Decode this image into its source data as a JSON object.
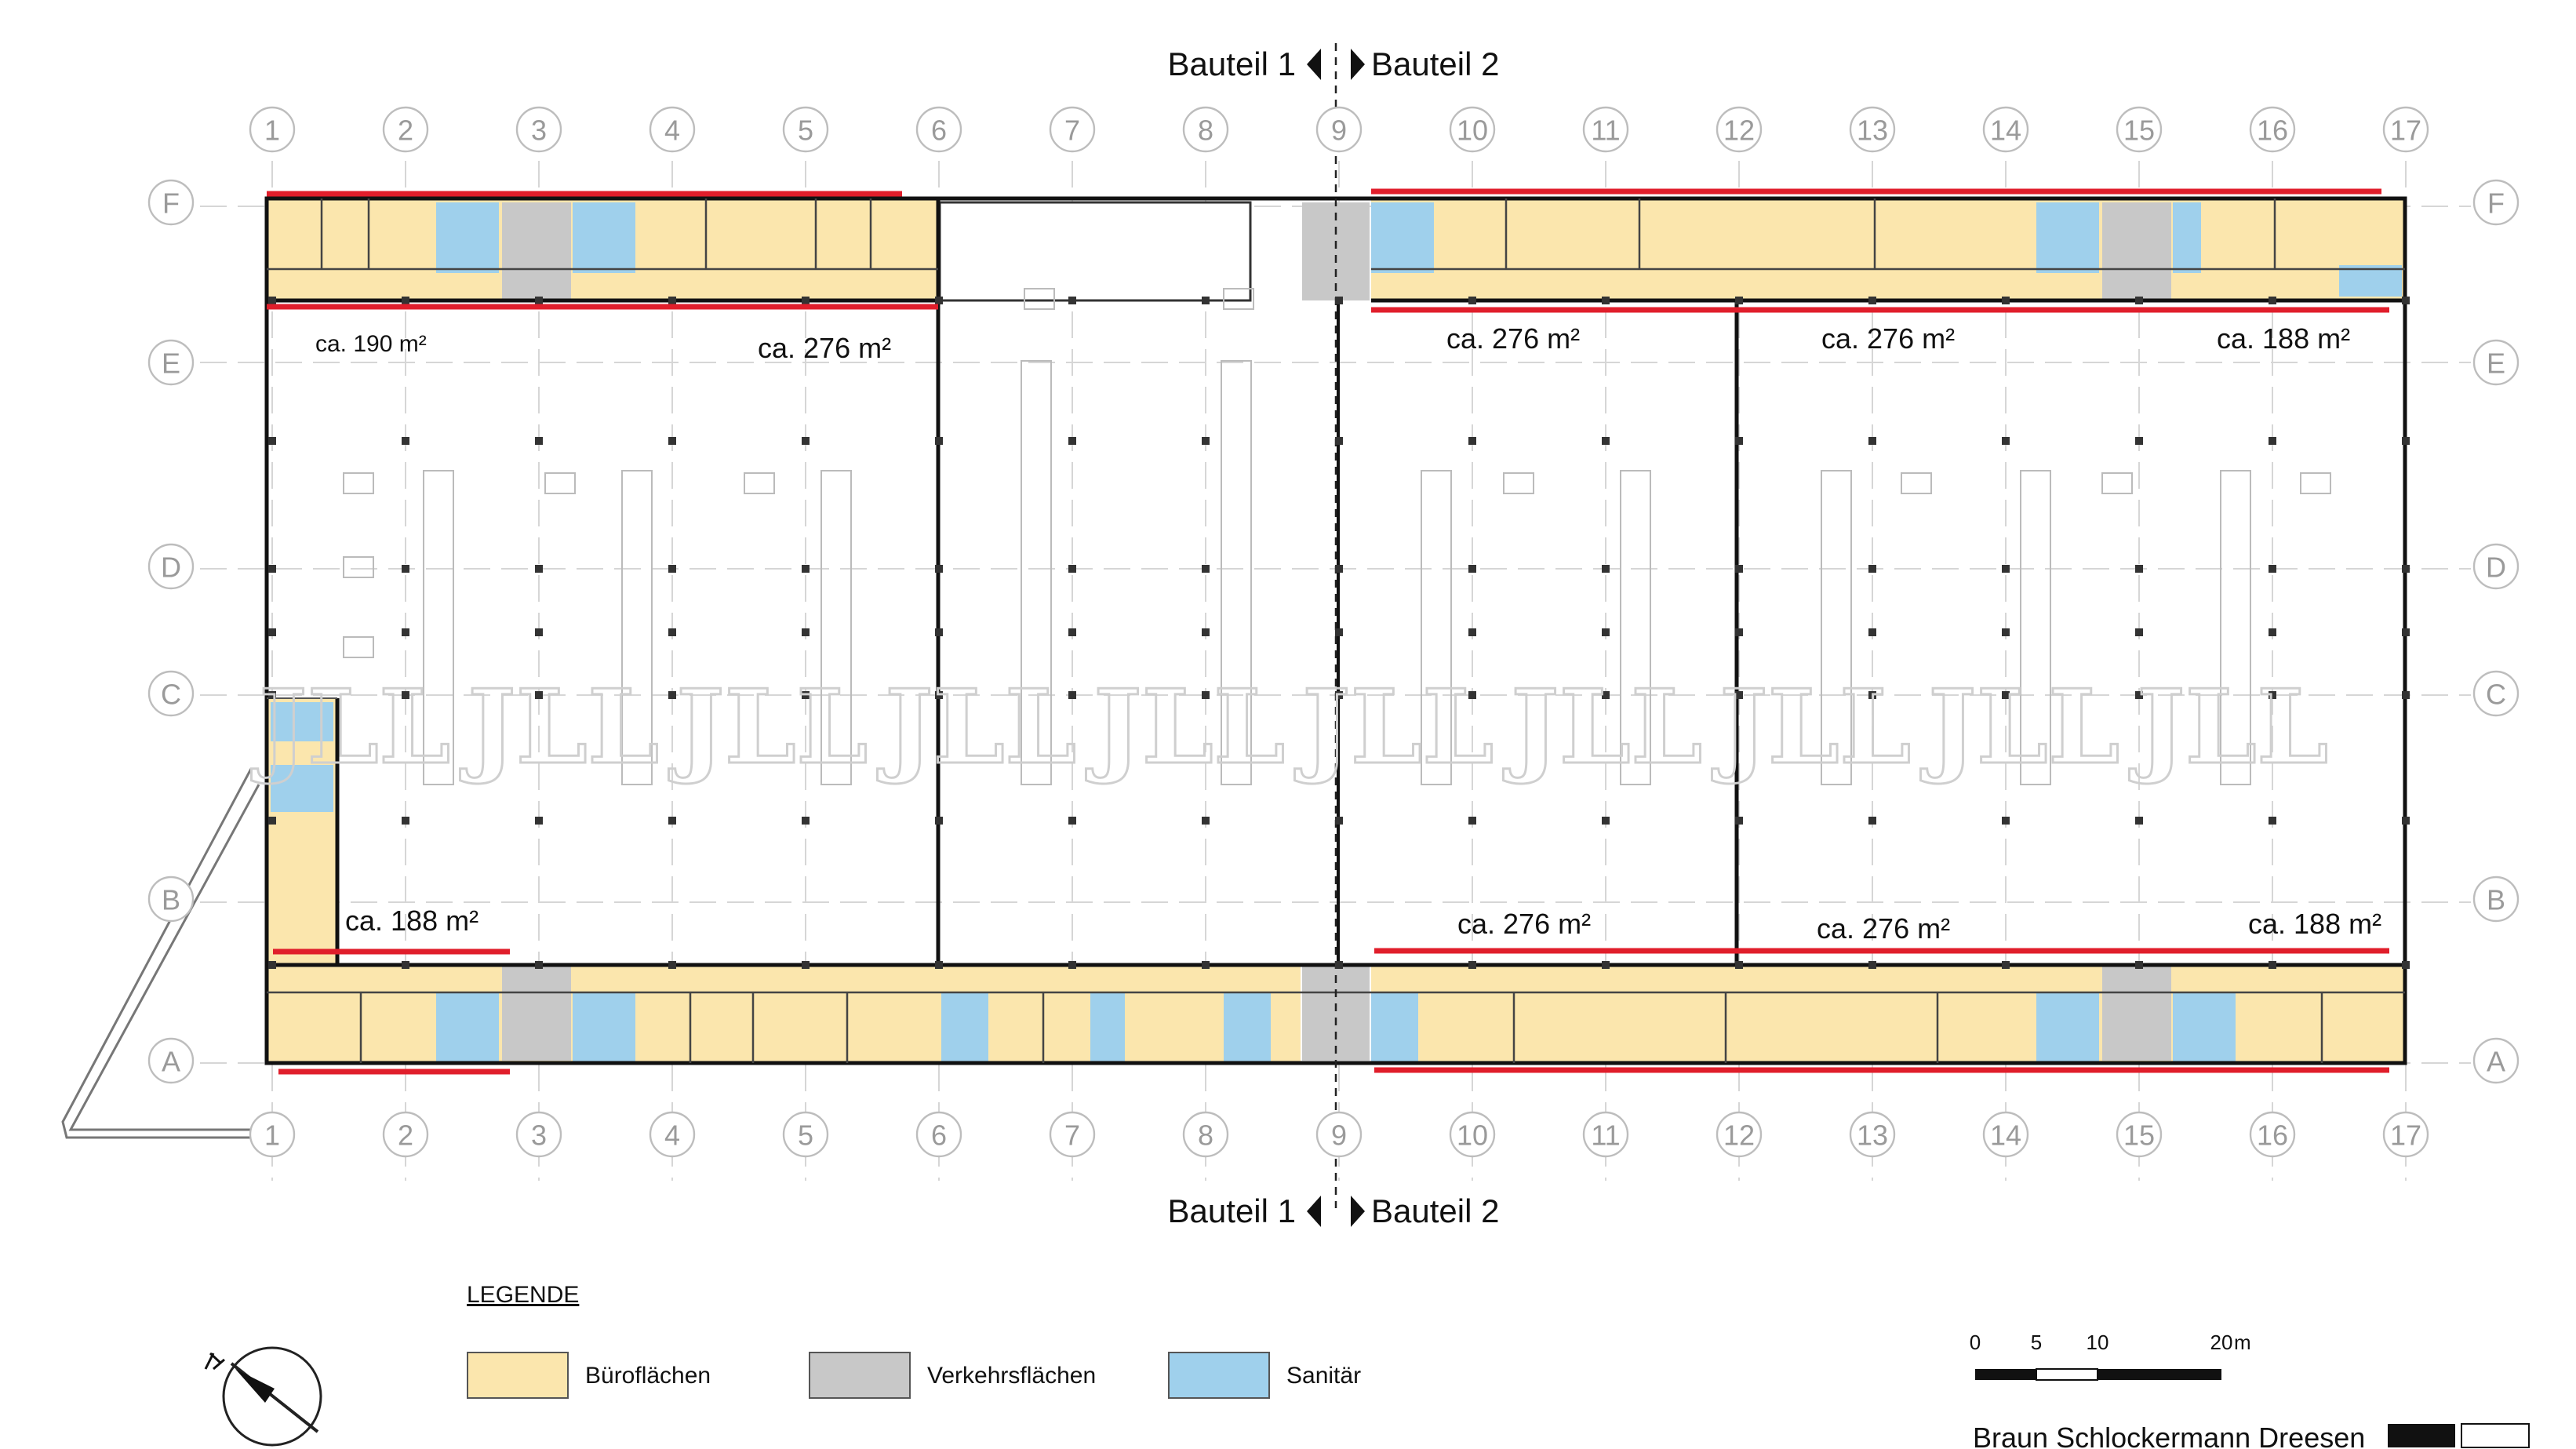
{
  "bauteil": {
    "left": "Bauteil 1",
    "right": "Bauteil 2"
  },
  "grid": {
    "columns": [
      "1",
      "2",
      "3",
      "4",
      "5",
      "6",
      "7",
      "8",
      "9",
      "10",
      "11",
      "12",
      "13",
      "14",
      "15",
      "16",
      "17"
    ],
    "rows": [
      "F",
      "E",
      "D",
      "C",
      "B",
      "A"
    ]
  },
  "areas": {
    "f_left_small": "ca. 190 m²",
    "f_left_large": "ca. 276 m²",
    "f_right_1": "ca. 276 m²",
    "f_right_2": "ca. 276 m²",
    "f_right_3": "ca. 188 m²",
    "a_left": "ca. 188 m²",
    "a_right_1": "ca. 276 m²",
    "a_right_2": "ca. 276 m²",
    "a_right_3": "ca. 188 m²"
  },
  "legend": {
    "title": "LEGENDE",
    "items": [
      {
        "label": "Büroflächen",
        "color": "#fbe6ad"
      },
      {
        "label": "Verkehrsflächen",
        "color": "#c8c8c8"
      },
      {
        "label": "Sanitär",
        "color": "#9fd0ec"
      }
    ]
  },
  "scale": {
    "ticks": [
      "0",
      "5",
      "10",
      "20"
    ],
    "unit": "m"
  },
  "architect": "Braun Schlockermann Dreesen",
  "watermark": "JLL",
  "colors": {
    "office": "#fbe6ad",
    "circulation": "#c8c8c8",
    "sanitary": "#9fd0ec",
    "marking": "#e01e2b"
  }
}
